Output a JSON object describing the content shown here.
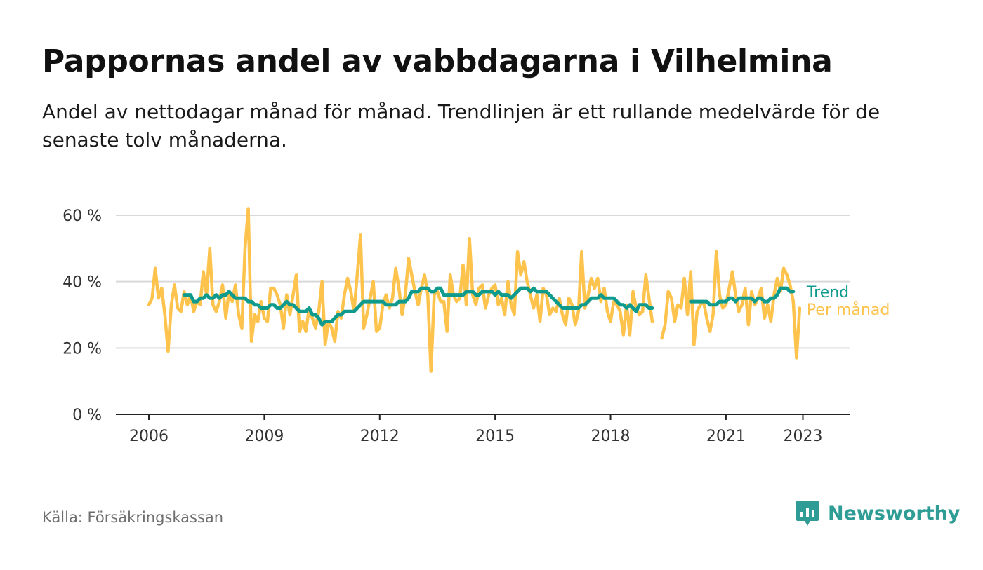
{
  "title": "Pappornas andel av vabbdagarna i Vilhelmina",
  "subtitle": "Andel av nettodagar månad för månad. Trendlinjen är ett rullande medelvärde för de senaste tolv månaderna.",
  "source": "Källa: Försäkringskassan",
  "brand": {
    "name": "Newsworthy",
    "icon": "newsworthy-logo-icon",
    "color": "#2f9d95"
  },
  "chart_data": {
    "type": "line",
    "x_unit": "month",
    "ylim": [
      0,
      65
    ],
    "xlim": [
      "2006-01",
      "2023-12"
    ],
    "yticks": [
      0,
      20,
      40,
      60
    ],
    "ytick_labels": [
      "0 %",
      "20 %",
      "40 %",
      "60 %"
    ],
    "xticks": [
      "2006",
      "2009",
      "2012",
      "2015",
      "2018",
      "2021",
      "2023"
    ],
    "grid": "horizontal",
    "legend": "direct labels at line ends",
    "series": [
      {
        "name": "Per månad",
        "color": "#fec34c",
        "start": "2006-01",
        "values": [
          33,
          35,
          44,
          35,
          38,
          30,
          19,
          33,
          39,
          32,
          31,
          37,
          33,
          36,
          31,
          34,
          33,
          43,
          36,
          50,
          33,
          31,
          34,
          39,
          29,
          37,
          34,
          39,
          30,
          26,
          50,
          62,
          22,
          30,
          28,
          34,
          29,
          28,
          38,
          38,
          36,
          33,
          26,
          36,
          30,
          36,
          42,
          25,
          28,
          25,
          32,
          29,
          26,
          31,
          40,
          21,
          28,
          26,
          22,
          31,
          29,
          36,
          41,
          37,
          31,
          42,
          54,
          26,
          30,
          35,
          40,
          25,
          26,
          33,
          36,
          32,
          35,
          44,
          38,
          30,
          36,
          47,
          42,
          37,
          33,
          38,
          42,
          36,
          13,
          36,
          37,
          34,
          34,
          25,
          42,
          36,
          34,
          35,
          45,
          33,
          53,
          36,
          33,
          38,
          39,
          32,
          36,
          38,
          39,
          33,
          35,
          30,
          40,
          33,
          30,
          49,
          42,
          46,
          40,
          36,
          32,
          36,
          28,
          38,
          36,
          30,
          32,
          31,
          35,
          30,
          27,
          35,
          33,
          27,
          31,
          49,
          32,
          36,
          41,
          38,
          41,
          34,
          38,
          31,
          28,
          34,
          33,
          31,
          24,
          33,
          24,
          37,
          32,
          30,
          31,
          42,
          35,
          28,
          null,
          null,
          23,
          27,
          37,
          35,
          28,
          33,
          32,
          41,
          30,
          43,
          21,
          31,
          33,
          34,
          29,
          25,
          30,
          49,
          36,
          32,
          33,
          38,
          43,
          36,
          31,
          33,
          38,
          27,
          37,
          33,
          35,
          38,
          29,
          33,
          28,
          36,
          41,
          37,
          44,
          42,
          39,
          34,
          17,
          32
        ]
      },
      {
        "name": "Trend",
        "color": "#0e9b8d",
        "start": "2006-01",
        "values": [
          null,
          null,
          null,
          null,
          null,
          null,
          null,
          null,
          null,
          null,
          null,
          36,
          36,
          36,
          34,
          34,
          35,
          35,
          36,
          35,
          35,
          36,
          35,
          36,
          36,
          37,
          36,
          35,
          35,
          35,
          35,
          34,
          34,
          33,
          33,
          32,
          32,
          32,
          33,
          33,
          32,
          32,
          33,
          34,
          33,
          33,
          32,
          31,
          31,
          31,
          32,
          30,
          30,
          29,
          27,
          28,
          28,
          28,
          29,
          30,
          30,
          31,
          31,
          31,
          31,
          32,
          33,
          34,
          34,
          34,
          34,
          34,
          34,
          34,
          33,
          33,
          33,
          33,
          34,
          34,
          34,
          35,
          37,
          37,
          37,
          38,
          38,
          38,
          37,
          37,
          38,
          38,
          36,
          36,
          36,
          36,
          36,
          36,
          36,
          37,
          37,
          37,
          36,
          36,
          37,
          37,
          37,
          37,
          36,
          37,
          36,
          36,
          36,
          35,
          36,
          37,
          38,
          38,
          38,
          37,
          38,
          37,
          37,
          37,
          37,
          36,
          35,
          34,
          33,
          32,
          32,
          32,
          32,
          32,
          32,
          33,
          33,
          34,
          35,
          35,
          35,
          36,
          35,
          35,
          35,
          35,
          34,
          33,
          33,
          32,
          33,
          32,
          31,
          33,
          33,
          33,
          32,
          32,
          null,
          null,
          null,
          null,
          null,
          null,
          null,
          null,
          null,
          null,
          null,
          34,
          34,
          34,
          34,
          34,
          34,
          33,
          33,
          33,
          34,
          34,
          34,
          35,
          35,
          34,
          35,
          35,
          35,
          35,
          35,
          34,
          35,
          35,
          34,
          34,
          35,
          35,
          36,
          38,
          38,
          38,
          37,
          37
        ]
      }
    ]
  }
}
